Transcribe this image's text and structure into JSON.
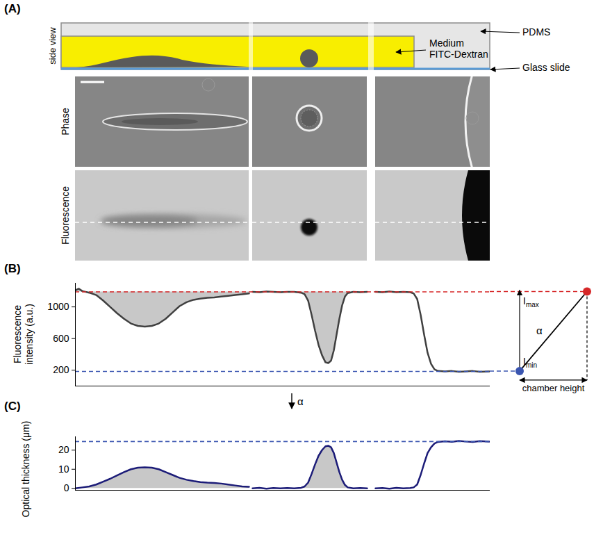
{
  "panel_labels": [
    "(A)",
    "(B)",
    "(C)"
  ],
  "schematic": {
    "row_label": "side view",
    "labels": {
      "pdms": "PDMS",
      "medium": [
        "Medium",
        "FITC-Dextran"
      ],
      "glass": "Glass slide"
    }
  },
  "image_rows": [
    "Phase",
    "Fluorescence"
  ],
  "conversion_arrow_label": "α",
  "chart_data": [
    {
      "type": "line",
      "y_label": "Fluorescence intensity (a.u.)",
      "xlim": [
        0,
        597
      ],
      "ylim": [
        0,
        1300
      ],
      "yticks": [
        200,
        600,
        1000
      ],
      "tick_labels": "y",
      "reference_lines": [
        {
          "value": 1190,
          "color": "#d62728",
          "line_style": "dashed",
          "label": {
            "text": "I",
            "subscript": "max"
          }
        },
        {
          "value": 185,
          "color": "#3a55b0",
          "line_style": "dashed",
          "label": {
            "text": "I",
            "subscript": "min"
          }
        }
      ],
      "inset": {
        "slope_label": "α",
        "x_label": "chamber height"
      },
      "series": [
        {
          "type": "area",
          "color": "#404040",
          "baseline": 1190,
          "x": [
            0,
            5,
            10,
            20,
            30,
            40,
            50,
            60,
            70,
            80,
            90,
            100,
            110,
            120,
            130,
            140,
            150,
            160,
            170,
            180,
            190,
            200,
            210,
            220,
            230,
            240,
            250
          ],
          "values": [
            1210,
            1230,
            1200,
            1180,
            1150,
            1080,
            1000,
            920,
            850,
            790,
            760,
            750,
            760,
            790,
            850,
            930,
            1010,
            1060,
            1090,
            1105,
            1115,
            1120,
            1130,
            1140,
            1150,
            1160,
            1170
          ]
        },
        {
          "type": "area",
          "color": "#404040",
          "baseline": 1190,
          "x": [
            255,
            265,
            275,
            285,
            295,
            305,
            315,
            325,
            330,
            335,
            340,
            345,
            350,
            355,
            360,
            364,
            368,
            372,
            376,
            380,
            384,
            388,
            392,
            400,
            410,
            420
          ],
          "values": [
            1190,
            1185,
            1195,
            1190,
            1185,
            1190,
            1190,
            1180,
            1160,
            1080,
            900,
            700,
            520,
            390,
            300,
            290,
            320,
            450,
            650,
            850,
            1020,
            1130,
            1175,
            1190,
            1185,
            1190
          ]
        },
        {
          "type": "line",
          "color": "#404040",
          "x": [
            432,
            442,
            452,
            462,
            472,
            482,
            487,
            492,
            497,
            502,
            507,
            512,
            517,
            522,
            532,
            542,
            552,
            562,
            572,
            582,
            597
          ],
          "values": [
            1190,
            1185,
            1195,
            1185,
            1190,
            1185,
            1170,
            1100,
            900,
            650,
            420,
            280,
            210,
            190,
            185,
            190,
            180,
            185,
            190,
            180,
            185
          ]
        }
      ]
    },
    {
      "type": "line",
      "y_label": "Optical thickness (μm)",
      "xlim": [
        0,
        597
      ],
      "ylim": [
        -1,
        27
      ],
      "yticks": [
        0,
        10,
        20
      ],
      "tick_labels": "y",
      "reference_lines": [
        {
          "value": 24.5,
          "color": "#3a55b0",
          "line_style": "dashed"
        }
      ],
      "series": [
        {
          "type": "area",
          "color": "#1c1c78",
          "baseline": 0,
          "x": [
            0,
            10,
            20,
            30,
            40,
            50,
            60,
            70,
            80,
            90,
            100,
            110,
            120,
            130,
            140,
            150,
            160,
            170,
            180,
            190,
            200,
            210,
            220,
            230,
            240,
            250
          ],
          "values": [
            0,
            0.5,
            1,
            2,
            3.5,
            5,
            6.8,
            8.5,
            10,
            10.8,
            11,
            10.8,
            10,
            8.5,
            7,
            5.5,
            4.5,
            3.8,
            3.3,
            3,
            2.8,
            2.5,
            2,
            1.5,
            1,
            0.8
          ]
        },
        {
          "type": "area",
          "color": "#1c1c78",
          "baseline": 0,
          "x": [
            255,
            265,
            275,
            285,
            295,
            305,
            315,
            325,
            330,
            335,
            340,
            345,
            350,
            355,
            360,
            364,
            368,
            372,
            376,
            380,
            384,
            388,
            392,
            400,
            410,
            420
          ],
          "values": [
            0,
            0.3,
            -0.2,
            0.2,
            0,
            0.2,
            0,
            0.3,
            1,
            3,
            7.5,
            12.5,
            17,
            20,
            22,
            22.3,
            21.5,
            18.5,
            13.5,
            8.5,
            4.5,
            1.8,
            0.5,
            0,
            0.2,
            0
          ]
        },
        {
          "type": "line",
          "color": "#1c1c78",
          "x": [
            432,
            442,
            452,
            462,
            472,
            482,
            487,
            492,
            497,
            502,
            507,
            512,
            517,
            522,
            532,
            542,
            552,
            562,
            572,
            582,
            597
          ],
          "values": [
            0,
            0.2,
            -0.2,
            0.3,
            0,
            0.2,
            0.5,
            2,
            7,
            13,
            18.5,
            21.5,
            23.5,
            24.3,
            24.6,
            24.4,
            24.8,
            24.5,
            24.3,
            24.7,
            24.4
          ]
        }
      ]
    }
  ]
}
